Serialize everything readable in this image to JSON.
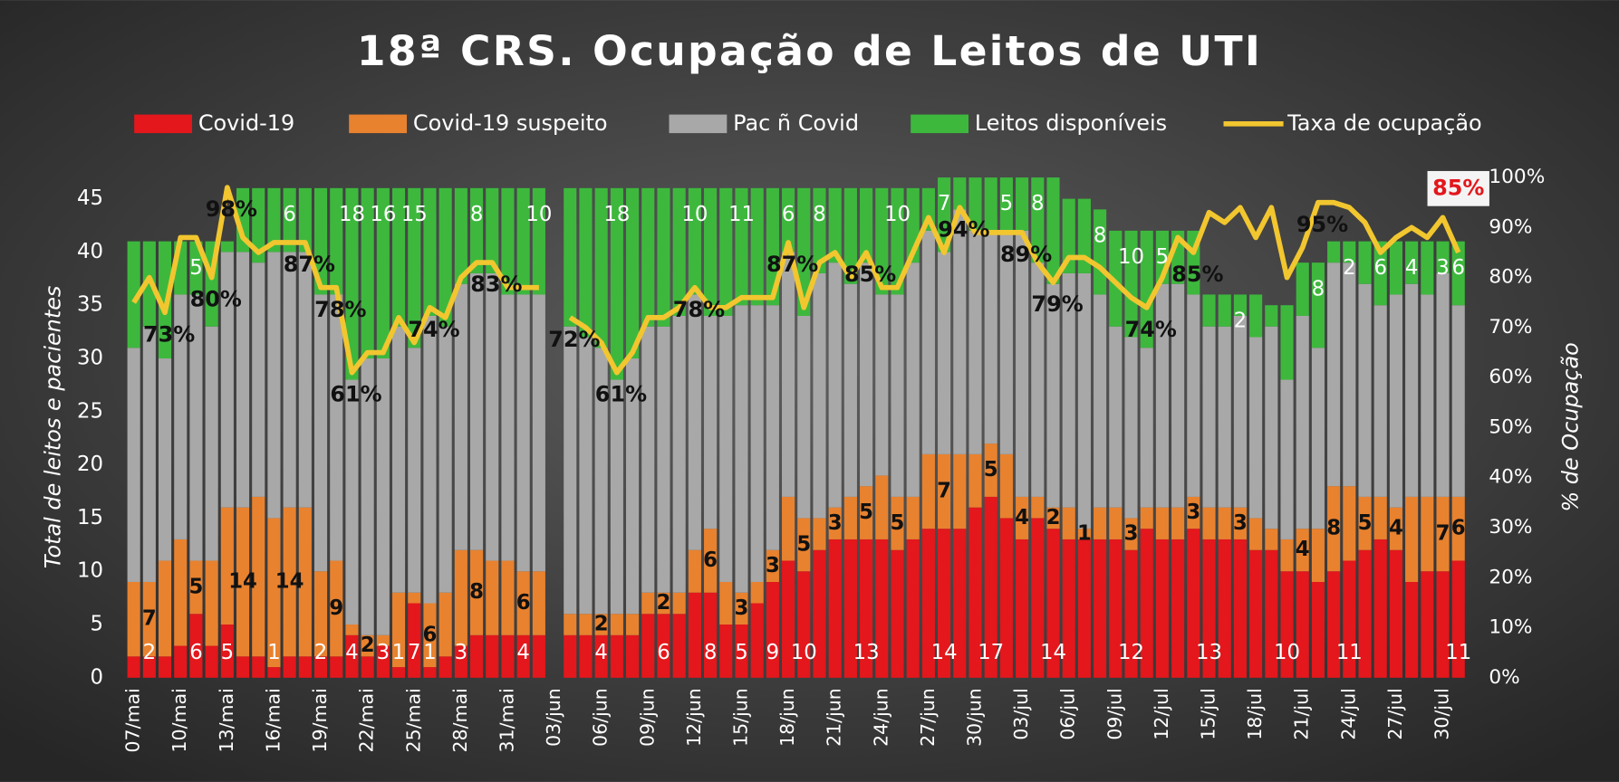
{
  "chart_data": {
    "type": "bar",
    "stacked": true,
    "title": "18ª CRS. Ocupação de Leitos de UTI",
    "ylabel": "Total de leitos e pacientes",
    "y2label": "% de Ocupação",
    "grid": false,
    "legend": "top",
    "ylim": [
      0,
      47
    ],
    "yticks": [
      0,
      5,
      10,
      15,
      20,
      25,
      30,
      35,
      40,
      45
    ],
    "y2lim": [
      0,
      100
    ],
    "y2ticks": [
      {
        "value": 0,
        "label": "0%"
      },
      {
        "value": 10,
        "label": "10%"
      },
      {
        "value": 20,
        "label": "20%"
      },
      {
        "value": 30,
        "label": "30%"
      },
      {
        "value": 40,
        "label": "40%"
      },
      {
        "value": 50,
        "label": "50%"
      },
      {
        "value": 60,
        "label": "60%"
      },
      {
        "value": 70,
        "label": "70%"
      },
      {
        "value": 80,
        "label": "80%"
      },
      {
        "value": 90,
        "label": "90%"
      },
      {
        "value": 100,
        "label": "100%"
      }
    ],
    "categories": [
      "07/mai",
      null,
      null,
      "10/mai",
      null,
      null,
      "13/mai",
      null,
      null,
      "16/mai",
      null,
      null,
      "19/mai",
      null,
      null,
      "22/mai",
      null,
      null,
      "25/mai",
      null,
      null,
      "28/mai",
      null,
      null,
      "31/mai",
      null,
      null,
      "03/jun",
      null,
      null,
      "06/jun",
      null,
      null,
      "09/jun",
      null,
      null,
      "12/jun",
      null,
      null,
      "15/jun",
      null,
      null,
      "18/jun",
      null,
      null,
      "21/jun",
      null,
      null,
      "24/jun",
      null,
      null,
      "27/jun",
      null,
      null,
      "30/jun",
      null,
      null,
      "03/jul",
      null,
      null,
      "06/jul",
      null,
      null,
      "09/jul",
      null,
      null,
      "12/jul",
      null,
      null,
      "15/jul",
      null,
      null,
      "18/jul",
      null,
      null,
      "21/jul",
      null,
      null,
      "24/jul",
      null,
      null,
      "27/jul",
      null,
      null,
      "30/jul",
      null
    ],
    "series": [
      {
        "name": "Covid-19",
        "color": "#e3171c",
        "values": [
          2,
          2,
          2,
          3,
          6,
          3,
          5,
          2,
          2,
          1,
          2,
          2,
          2,
          2,
          4,
          2,
          3,
          1,
          7,
          1,
          2,
          3,
          4,
          4,
          4,
          4,
          4,
          null,
          4,
          4,
          4,
          4,
          4,
          6,
          6,
          6,
          8,
          8,
          5,
          5,
          7,
          9,
          11,
          10,
          12,
          13,
          13,
          13,
          13,
          12,
          13,
          14,
          14,
          14,
          16,
          17,
          15,
          13,
          15,
          14,
          13,
          13,
          13,
          13,
          12,
          14,
          13,
          13,
          14,
          13,
          13,
          13,
          12,
          12,
          10,
          10,
          9,
          10,
          11,
          12,
          13,
          12,
          9,
          10,
          10,
          11
        ],
        "value_labels": [
          null,
          "2",
          null,
          null,
          "6",
          null,
          "5",
          null,
          null,
          "1",
          null,
          null,
          "2",
          null,
          "4",
          null,
          "3",
          "1",
          "7",
          "1",
          null,
          "3",
          null,
          null,
          null,
          "4",
          null,
          null,
          null,
          null,
          "4",
          null,
          null,
          null,
          "6",
          null,
          null,
          "8",
          null,
          "5",
          null,
          "9",
          null,
          "10",
          null,
          null,
          null,
          "13",
          null,
          null,
          null,
          null,
          "14",
          null,
          null,
          "17",
          null,
          null,
          null,
          "14",
          null,
          null,
          null,
          null,
          "12",
          null,
          null,
          null,
          null,
          "13",
          null,
          null,
          null,
          null,
          "10",
          null,
          null,
          null,
          "11",
          null,
          null,
          null,
          null,
          null,
          null,
          "11"
        ]
      },
      {
        "name": "Covid-19 suspeito",
        "color": "#e8822f",
        "values": [
          7,
          7,
          9,
          10,
          5,
          8,
          11,
          14,
          15,
          14,
          14,
          14,
          8,
          9,
          1,
          2,
          1,
          7,
          1,
          6,
          6,
          9,
          8,
          7,
          7,
          6,
          6,
          null,
          2,
          2,
          2,
          2,
          2,
          2,
          2,
          2,
          4,
          6,
          4,
          3,
          2,
          3,
          6,
          5,
          3,
          3,
          4,
          5,
          6,
          5,
          4,
          7,
          7,
          7,
          5,
          5,
          6,
          4,
          2,
          2,
          3,
          1,
          3,
          3,
          3,
          2,
          3,
          3,
          3,
          3,
          3,
          3,
          3,
          2,
          3,
          4,
          5,
          8,
          7,
          5,
          4,
          4,
          8,
          7,
          7,
          6
        ],
        "value_labels": [
          null,
          "7",
          null,
          null,
          "5",
          null,
          null,
          "14",
          null,
          null,
          "14",
          null,
          null,
          "9",
          null,
          "2",
          null,
          null,
          null,
          "6",
          null,
          null,
          "8",
          null,
          null,
          "6",
          null,
          null,
          null,
          null,
          "2",
          null,
          null,
          null,
          "2",
          null,
          null,
          "6",
          null,
          "3",
          null,
          "3",
          null,
          "5",
          null,
          "3",
          null,
          "5",
          null,
          "5",
          null,
          null,
          "7",
          null,
          null,
          "5",
          null,
          "4",
          null,
          "2",
          null,
          "1",
          null,
          null,
          "3",
          null,
          null,
          null,
          "3",
          null,
          null,
          "3",
          null,
          null,
          null,
          "4",
          null,
          "8",
          null,
          "5",
          null,
          "4",
          null,
          null,
          "7",
          "6"
        ]
      },
      {
        "name": "Pac ñ Covid",
        "color": "#a8a8a8",
        "values": [
          22,
          24,
          19,
          23,
          25,
          22,
          24,
          24,
          22,
          25,
          24,
          24,
          26,
          25,
          23,
          26,
          26,
          25,
          23,
          27,
          25,
          25,
          26,
          27,
          25,
          26,
          26,
          null,
          27,
          26,
          25,
          22,
          24,
          25,
          25,
          26,
          24,
          20,
          25,
          27,
          26,
          23,
          23,
          19,
          23,
          23,
          20,
          21,
          17,
          19,
          22,
          21,
          19,
          23,
          21,
          20,
          21,
          25,
          22,
          21,
          22,
          24,
          20,
          17,
          17,
          15,
          21,
          21,
          19,
          17,
          17,
          18,
          17,
          19,
          15,
          20,
          17,
          21,
          21,
          20,
          18,
          20,
          20,
          19,
          21,
          18
        ]
      },
      {
        "name": "Leitos disponíveis",
        "color": "#3db83d",
        "values": [
          10,
          8,
          11,
          5,
          5,
          8,
          1,
          6,
          7,
          6,
          6,
          6,
          10,
          10,
          18,
          16,
          16,
          13,
          15,
          12,
          13,
          9,
          8,
          8,
          10,
          10,
          10,
          null,
          13,
          14,
          15,
          18,
          16,
          13,
          13,
          12,
          10,
          12,
          12,
          11,
          11,
          11,
          6,
          12,
          8,
          7,
          9,
          7,
          10,
          10,
          7,
          4,
          7,
          3,
          5,
          5,
          5,
          5,
          8,
          10,
          7,
          7,
          8,
          9,
          10,
          11,
          5,
          5,
          6,
          3,
          3,
          2,
          4,
          2,
          7,
          5,
          8,
          2,
          2,
          4,
          6,
          5,
          4,
          5,
          3,
          6
        ],
        "value_labels": [
          null,
          null,
          null,
          null,
          "5",
          null,
          null,
          null,
          null,
          null,
          "6",
          null,
          null,
          null,
          "18",
          null,
          "16",
          null,
          "15",
          null,
          null,
          null,
          "8",
          null,
          null,
          null,
          "10",
          null,
          null,
          null,
          null,
          "18",
          null,
          null,
          null,
          null,
          "10",
          null,
          null,
          "11",
          null,
          null,
          "6",
          null,
          "8",
          null,
          null,
          null,
          null,
          "10",
          null,
          null,
          "7",
          null,
          null,
          null,
          "5",
          null,
          "8",
          null,
          null,
          null,
          "8",
          null,
          "10",
          null,
          "5",
          null,
          null,
          null,
          null,
          "2",
          null,
          null,
          null,
          null,
          "8",
          null,
          "2",
          null,
          "6",
          null,
          "4",
          null,
          "3",
          "6"
        ]
      },
      {
        "name": "Taxa de ocupação",
        "color": "#f2c62f",
        "axis": "y2",
        "values": [
          75,
          80,
          73,
          88,
          88,
          80,
          98,
          88,
          85,
          87,
          87,
          87,
          78,
          78,
          61,
          65,
          65,
          72,
          67,
          74,
          72,
          80,
          83,
          83,
          78,
          78,
          78,
          null,
          72,
          70,
          67,
          61,
          65,
          72,
          72,
          74,
          78,
          74,
          74,
          76,
          76,
          76,
          87,
          74,
          83,
          85,
          80,
          85,
          78,
          78,
          85,
          92,
          85,
          94,
          89,
          89,
          89,
          89,
          83,
          79,
          84,
          84,
          82,
          79,
          76,
          74,
          80,
          88,
          85,
          93,
          91,
          94,
          88,
          94,
          80,
          86,
          95,
          95,
          94,
          91,
          85,
          88,
          90,
          88,
          92,
          85
        ],
        "value_labels": [
          null,
          null,
          "73%",
          null,
          null,
          "80%",
          "98%",
          null,
          null,
          null,
          null,
          "87%",
          null,
          "78%",
          "61%",
          null,
          null,
          null,
          null,
          "74%",
          null,
          null,
          null,
          "83%",
          null,
          null,
          null,
          null,
          "72%",
          null,
          null,
          "61%",
          null,
          null,
          null,
          null,
          "78%",
          null,
          null,
          null,
          null,
          null,
          "87%",
          null,
          null,
          null,
          null,
          "85%",
          null,
          null,
          null,
          null,
          null,
          "94%",
          null,
          null,
          null,
          "89%",
          null,
          "79%",
          null,
          null,
          null,
          null,
          null,
          "74%",
          null,
          null,
          "85%",
          null,
          null,
          null,
          null,
          null,
          null,
          null,
          "95%",
          null,
          null,
          null,
          null,
          null,
          null,
          null,
          null,
          "85%"
        ]
      }
    ]
  }
}
